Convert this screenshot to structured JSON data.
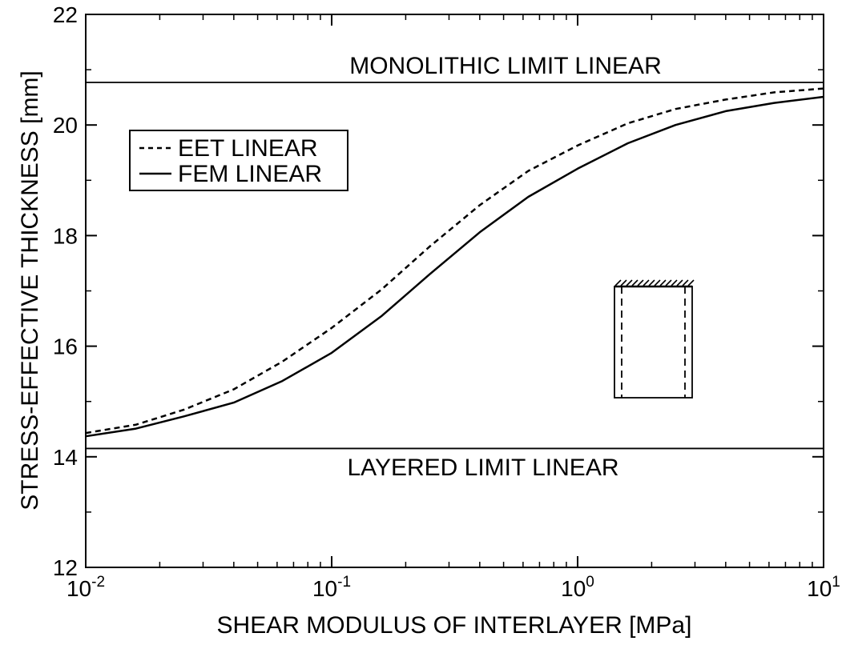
{
  "chart_data": {
    "type": "line",
    "x_scale": "log",
    "xlim": [
      0.01,
      10
    ],
    "ylim": [
      12,
      22
    ],
    "xlabel": "SHEAR MODULUS OF INTERLAYER [MPa]",
    "ylabel": "STRESS-EFFECTIVE THICKNESS [mm]",
    "x_ticks": [
      {
        "base": "10",
        "exp": "-2",
        "value": 0.01
      },
      {
        "base": "10",
        "exp": "-1",
        "value": 0.1
      },
      {
        "base": "10",
        "exp": "0",
        "value": 1
      },
      {
        "base": "10",
        "exp": "1",
        "value": 10
      }
    ],
    "y_ticks": [
      "12",
      "14",
      "16",
      "18",
      "20",
      "22"
    ],
    "grid": false,
    "legend_position": "top-left",
    "series": [
      {
        "name": "EET LINEAR",
        "style": "dashed",
        "x": [
          0.01,
          0.016,
          0.025,
          0.04,
          0.063,
          0.1,
          0.16,
          0.25,
          0.4,
          0.63,
          1.0,
          1.6,
          2.5,
          4.0,
          6.3,
          10.0
        ],
        "y": [
          14.43,
          14.58,
          14.85,
          15.22,
          15.72,
          16.33,
          17.03,
          17.8,
          18.55,
          19.17,
          19.63,
          20.03,
          20.29,
          20.46,
          20.59,
          20.66
        ]
      },
      {
        "name": "FEM LINEAR",
        "style": "solid",
        "x": [
          0.01,
          0.016,
          0.025,
          0.04,
          0.063,
          0.1,
          0.16,
          0.25,
          0.4,
          0.63,
          1.0,
          1.6,
          2.5,
          4.0,
          6.3,
          10.0
        ],
        "y": [
          14.37,
          14.51,
          14.73,
          14.98,
          15.37,
          15.88,
          16.55,
          17.3,
          18.06,
          18.7,
          19.21,
          19.67,
          20.0,
          20.25,
          20.4,
          20.51
        ]
      }
    ],
    "reference_lines": [
      {
        "label": "MONOLITHIC LIMIT LINEAR",
        "y": 20.77
      },
      {
        "label": "LAYERED LIMIT LINEAR",
        "y": 14.15
      }
    ]
  }
}
